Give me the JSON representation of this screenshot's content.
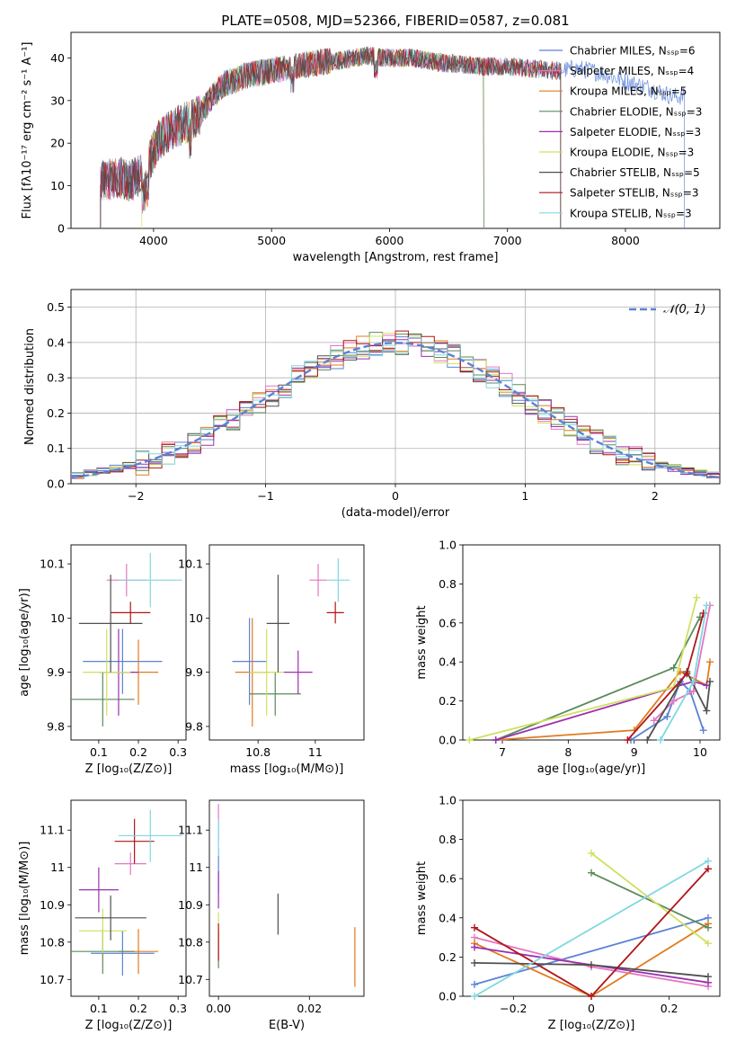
{
  "chart_data": [
    {
      "id": "spectrum",
      "type": "line",
      "title": "PLATE=0508, MJD=52366, FIBERID=0587, z=0.081",
      "xlabel": "wavelength [Angstrom, rest frame]",
      "ylabel": "Flux [fλ10⁻¹⁷ erg cm⁻² s⁻¹ A⁻¹]",
      "xlim": [
        3300,
        8800
      ],
      "ylim": [
        0,
        46
      ],
      "xticks": [
        4000,
        5000,
        6000,
        7000,
        8000
      ],
      "yticks": [
        0,
        10,
        20,
        30,
        40
      ],
      "grid": false,
      "legend_position": "top-right",
      "legend": [
        "Chabrier MILES, Nₛₛₚ=6",
        "Salpeter MILES, Nₛₛₚ=4",
        "Kroupa MILES, Nₛₛₚ=5",
        "Chabrier ELODIE, Nₛₛₚ=3",
        "Salpeter ELODIE, Nₛₛₚ=3",
        "Kroupa ELODIE, Nₛₛₚ=3",
        "Chabrier STELIB, Nₛₛₚ=5",
        "Salpeter STELIB, Nₛₛₚ=3",
        "Kroupa STELIB, Nₛₛₚ=3"
      ],
      "continuum": {
        "x": [
          3550,
          3700,
          3800,
          3900,
          3950,
          4050,
          4200,
          4300,
          4400,
          4500,
          4600,
          4800,
          5000,
          5200,
          5400,
          5600,
          5800,
          6000,
          6200,
          6400,
          6600,
          6800,
          7000,
          7200,
          7400,
          7600,
          7800,
          8000,
          8200,
          8400
        ],
        "y": [
          11,
          12,
          11,
          13,
          15,
          21,
          24,
          25,
          27,
          31,
          34,
          36,
          37,
          38,
          39,
          39.5,
          40.5,
          40,
          40,
          39,
          38.5,
          38,
          38,
          37.5,
          37,
          37.5,
          36.5,
          34.5,
          33,
          31
        ]
      },
      "series_ranges": [
        [
          3550,
          8500
        ],
        [
          3550,
          7450
        ],
        [
          3550,
          7450
        ],
        [
          3550,
          6800
        ],
        [
          3550,
          6800
        ],
        [
          3900,
          6800
        ],
        [
          3550,
          7450
        ],
        [
          3550,
          7450
        ],
        [
          3550,
          7450
        ]
      ],
      "ssp_label": "SSP"
    },
    {
      "id": "residuals",
      "type": "line",
      "xlabel": "(data-model)/error",
      "ylabel": "Normed distribution",
      "xlim": [
        -2.5,
        2.5
      ],
      "ylim": [
        0,
        0.55
      ],
      "xticks": [
        -2,
        -1,
        0,
        1,
        2
      ],
      "yticks": [
        0.0,
        0.1,
        0.2,
        0.3,
        0.4,
        0.5
      ],
      "grid": true,
      "legend": [
        "𝒩(0, 1)"
      ],
      "legend_position": "top-right",
      "bin_width": 0.1
    },
    {
      "id": "z-vs-age",
      "type": "scatter",
      "xlabel": "Z [log₁₀(Z/Z⊙)]",
      "ylabel": "age  [log₁₀(age/yr)]",
      "xlim": [
        0.03,
        0.32
      ],
      "ylim": [
        9.775,
        10.135
      ],
      "xticks": [
        0.1,
        0.2,
        0.3
      ],
      "yticks": [
        9.8,
        9.9,
        10.0,
        10.1
      ],
      "points": [
        [
          0.16,
          9.92,
          0.1,
          0.06
        ],
        [
          0.17,
          10.07,
          0.05,
          0.03
        ],
        [
          0.2,
          9.9,
          0.05,
          0.06
        ],
        [
          0.11,
          9.85,
          0.08,
          0.05
        ],
        [
          0.15,
          9.9,
          0.05,
          0.08
        ],
        [
          0.12,
          9.9,
          0.06,
          0.08
        ],
        [
          0.13,
          9.99,
          0.08,
          0.09
        ],
        [
          0.18,
          10.01,
          0.05,
          0.02
        ],
        [
          0.23,
          10.07,
          0.08,
          0.05
        ]
      ]
    },
    {
      "id": "mass-vs-age",
      "type": "scatter",
      "xlabel": "mass [log₁₀(M/M⊙)]",
      "ylabel": "",
      "xlim": [
        10.63,
        11.17
      ],
      "ylim": [
        9.775,
        10.135
      ],
      "xticks": [
        10.8,
        11.0
      ],
      "yticks": [
        9.8,
        9.9,
        10.0,
        10.1
      ],
      "points": [
        [
          10.77,
          9.92,
          0.06,
          0.08
        ],
        [
          11.01,
          10.07,
          0.03,
          0.03
        ],
        [
          10.78,
          9.9,
          0.06,
          0.1
        ],
        [
          10.86,
          9.86,
          0.09,
          0.04
        ],
        [
          10.94,
          9.9,
          0.05,
          0.04
        ],
        [
          10.83,
          9.9,
          0.06,
          0.08
        ],
        [
          10.87,
          9.99,
          0.04,
          0.09
        ],
        [
          11.07,
          10.01,
          0.03,
          0.02
        ],
        [
          11.08,
          10.07,
          0.04,
          0.04
        ]
      ]
    },
    {
      "id": "age-vs-massweight",
      "type": "line",
      "xlabel": "age  [log₁₀(age/yr)]",
      "ylabel": "mass weight",
      "xlim": [
        6.4,
        10.3
      ],
      "ylim": [
        0,
        1.0
      ],
      "xticks": [
        7,
        8,
        9,
        10
      ],
      "yticks": [
        0.0,
        0.2,
        0.4,
        0.6,
        0.8,
        1.0
      ],
      "series": [
        {
          "x": [
            8.95,
            9.5,
            9.7,
            9.85,
            10.05
          ],
          "values": [
            0.0,
            0.12,
            0.3,
            0.25,
            0.05
          ]
        },
        {
          "x": [
            9.3,
            9.6,
            9.9,
            10.15
          ],
          "values": [
            0.1,
            0.2,
            0.25,
            0.69
          ]
        },
        {
          "x": [
            6.9,
            9.0,
            9.7,
            10.1,
            10.15
          ],
          "values": [
            0.0,
            0.05,
            0.35,
            0.28,
            0.4
          ]
        },
        {
          "x": [
            6.9,
            9.6,
            10.0
          ],
          "values": [
            0.0,
            0.37,
            0.63
          ]
        },
        {
          "x": [
            6.9,
            9.9,
            10.1
          ],
          "values": [
            0.0,
            0.3,
            0.28
          ]
        },
        {
          "x": [
            6.5,
            9.6,
            9.95
          ],
          "values": [
            0.0,
            0.27,
            0.73
          ]
        },
        {
          "x": [
            9.2,
            9.8,
            10.1,
            10.15
          ],
          "values": [
            0.0,
            0.35,
            0.15,
            0.3
          ]
        },
        {
          "x": [
            8.9,
            9.8,
            10.05
          ],
          "values": [
            0.0,
            0.34,
            0.65
          ]
        },
        {
          "x": [
            9.4,
            9.9,
            10.1
          ],
          "values": [
            0.0,
            0.3,
            0.69
          ]
        }
      ]
    },
    {
      "id": "z-vs-mass",
      "type": "scatter",
      "xlabel": "Z [log₁₀(Z/Z⊙)]",
      "ylabel": "mass [log₁₀(M/M⊙)]",
      "xlim": [
        0.03,
        0.32
      ],
      "ylim": [
        10.655,
        11.18
      ],
      "xticks": [
        0.1,
        0.2,
        0.3
      ],
      "yticks": [
        10.7,
        10.8,
        10.9,
        11.0,
        11.1
      ],
      "points": [
        [
          0.16,
          10.77,
          0.08,
          0.06
        ],
        [
          0.18,
          11.01,
          0.04,
          0.03
        ],
        [
          0.2,
          10.775,
          0.05,
          0.06
        ],
        [
          0.11,
          10.775,
          0.08,
          0.06
        ],
        [
          0.1,
          10.94,
          0.05,
          0.06
        ],
        [
          0.11,
          10.83,
          0.06,
          0.06
        ],
        [
          0.13,
          10.865,
          0.09,
          0.06
        ],
        [
          0.19,
          11.07,
          0.05,
          0.06
        ],
        [
          0.23,
          11.085,
          0.08,
          0.07
        ]
      ]
    },
    {
      "id": "ebv-vs-mass",
      "type": "scatter",
      "xlabel": "E(B-V)",
      "ylabel": "",
      "xlim": [
        -0.002,
        0.032
      ],
      "ylim": [
        10.655,
        11.18
      ],
      "xticks": [
        0.0,
        0.02
      ],
      "yticks": [
        10.7,
        10.8,
        10.9,
        11.0,
        11.1
      ],
      "points": [
        [
          0.0,
          10.99,
          0,
          0.06
        ],
        [
          0.0,
          11.12,
          0,
          0.05
        ],
        [
          0.03,
          10.76,
          0,
          0.08
        ],
        [
          0.0,
          10.78,
          0,
          0.05
        ],
        [
          0.0,
          10.94,
          0,
          0.05
        ],
        [
          0.0,
          10.83,
          0,
          0.05
        ],
        [
          0.0131,
          10.875,
          0,
          0.055
        ],
        [
          0.0,
          10.8,
          0,
          0.05
        ],
        [
          0.0,
          11.08,
          0,
          0.05
        ]
      ]
    },
    {
      "id": "z-vs-massweight",
      "type": "line",
      "xlabel": "Z [log₁₀(Z/Z⊙)]",
      "ylabel": "mass weight",
      "xlim": [
        -0.33,
        0.33
      ],
      "ylim": [
        0,
        1.0
      ],
      "xticks": [
        -0.2,
        0.0,
        0.2
      ],
      "yticks": [
        0.0,
        0.2,
        0.4,
        0.6,
        0.8,
        1.0
      ],
      "series": [
        {
          "x": [
            -0.3,
            0.3
          ],
          "values": [
            0.06,
            0.4
          ]
        },
        {
          "x": [
            -0.3,
            0.0,
            0.3
          ],
          "values": [
            0.3,
            0.15,
            0.05
          ]
        },
        {
          "x": [
            -0.3,
            0.0,
            0.3
          ],
          "values": [
            0.27,
            0.0,
            0.37
          ]
        },
        {
          "x": [
            0.0,
            0.3
          ],
          "values": [
            0.63,
            0.35
          ]
        },
        {
          "x": [
            -0.3,
            0.3
          ],
          "values": [
            0.25,
            0.07
          ]
        },
        {
          "x": [
            0.0,
            0.3
          ],
          "values": [
            0.73,
            0.27
          ]
        },
        {
          "x": [
            -0.3,
            0.0,
            0.3
          ],
          "values": [
            0.17,
            0.16,
            0.1
          ]
        },
        {
          "x": [
            -0.3,
            0.0,
            0.3
          ],
          "values": [
            0.35,
            0.0,
            0.65
          ]
        },
        {
          "x": [
            -0.3,
            0.3
          ],
          "values": [
            0.0,
            0.69
          ]
        }
      ]
    }
  ],
  "series_colors": [
    "#5b82d6",
    "#e377c2",
    "#e07b1f",
    "#5b8a5b",
    "#9b30b0",
    "#d0e060",
    "#505050",
    "#b0141a",
    "#80d8e0"
  ]
}
